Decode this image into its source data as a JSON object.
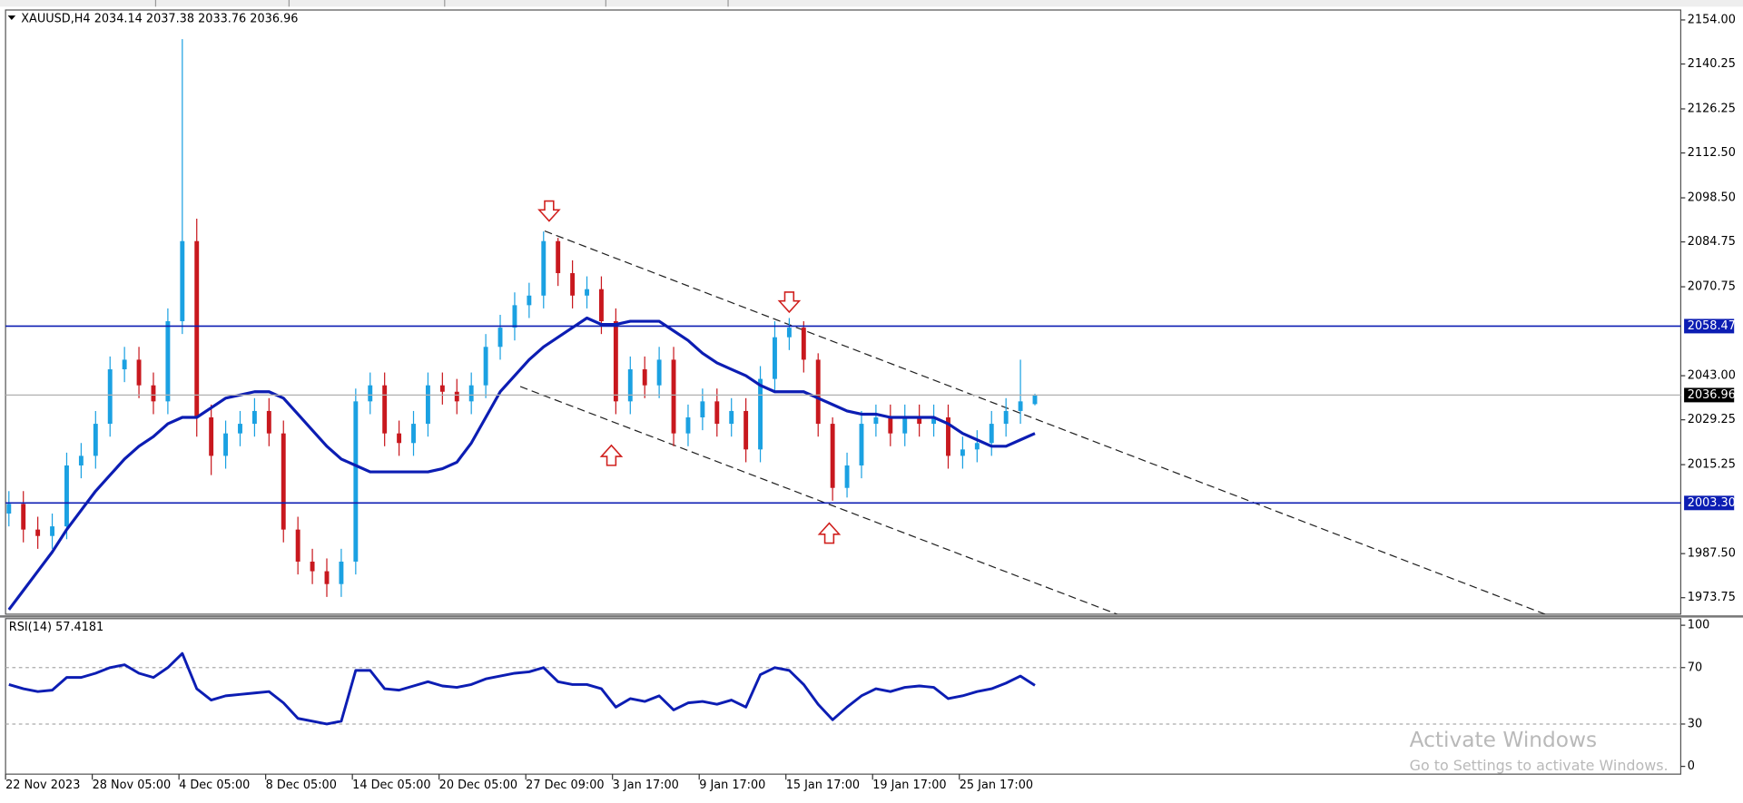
{
  "chart_data": [
    {
      "type": "candlestick",
      "title": "XAUUSD,H4  2034.14 2037.38 2033.76 2036.96",
      "bull_color": "#1ba1e2",
      "bear_color": "#c8181e",
      "open": [
        2000,
        2003,
        1995,
        1993,
        1996,
        2015,
        2018,
        2028,
        2045,
        2048,
        2040,
        2035,
        2060,
        2085,
        2030,
        2018,
        2025,
        2028,
        2032,
        2025,
        1995,
        1985,
        1982,
        1978,
        1985,
        2035,
        2040,
        2025,
        2022,
        2028,
        2040,
        2038,
        2035,
        2040,
        2052,
        2058,
        2065,
        2068,
        2085,
        2075,
        2068,
        2070,
        2060,
        2035,
        2045,
        2040,
        2048,
        2025,
        2030,
        2035,
        2028,
        2032,
        2020,
        2042,
        2055,
        2058,
        2048,
        2028,
        2008,
        2015,
        2028,
        2030,
        2025,
        2030,
        2028,
        2030,
        2018,
        2020,
        2022,
        2028,
        2032,
        2034.14
      ],
      "high": [
        2007,
        2007,
        1999,
        2000,
        2019,
        2022,
        2032,
        2049,
        2052,
        2052,
        2044,
        2064,
        2148,
        2092,
        2034,
        2029,
        2032,
        2036,
        2036,
        2029,
        1999,
        1989,
        1986,
        1989,
        2039,
        2044,
        2044,
        2029,
        2032,
        2044,
        2044,
        2042,
        2044,
        2056,
        2062,
        2069,
        2072,
        2088,
        2086,
        2079,
        2074,
        2074,
        2064,
        2049,
        2049,
        2052,
        2052,
        2034,
        2039,
        2039,
        2036,
        2036,
        2046,
        2060,
        2061,
        2060,
        2050,
        2030,
        2019,
        2032,
        2034,
        2034,
        2034,
        2034,
        2034,
        2034,
        2024,
        2026,
        2032,
        2036,
        2048,
        2037.38
      ],
      "low": [
        1996,
        1991,
        1989,
        1989,
        1992,
        2011,
        2014,
        2024,
        2041,
        2036,
        2031,
        2031,
        2056,
        2024,
        2012,
        2014,
        2021,
        2024,
        2021,
        1991,
        1981,
        1978,
        1974,
        1974,
        1981,
        2031,
        2021,
        2018,
        2018,
        2024,
        2034,
        2031,
        2031,
        2036,
        2048,
        2054,
        2061,
        2064,
        2071,
        2064,
        2064,
        2056,
        2031,
        2031,
        2036,
        2036,
        2021,
        2021,
        2026,
        2024,
        2024,
        2016,
        2016,
        2038,
        2051,
        2044,
        2024,
        2004,
        2005,
        2011,
        2024,
        2021,
        2021,
        2024,
        2024,
        2014,
        2014,
        2016,
        2018,
        2024,
        2028,
        2033.76
      ],
      "close": [
        2003,
        1995,
        1993,
        1996,
        2015,
        2018,
        2028,
        2045,
        2048,
        2040,
        2035,
        2060,
        2085,
        2030,
        2018,
        2025,
        2028,
        2032,
        2025,
        1995,
        1985,
        1982,
        1978,
        1985,
        2035,
        2040,
        2025,
        2022,
        2028,
        2040,
        2038,
        2035,
        2040,
        2052,
        2058,
        2065,
        2068,
        2085,
        2075,
        2068,
        2070,
        2060,
        2035,
        2045,
        2040,
        2048,
        2025,
        2030,
        2035,
        2028,
        2032,
        2020,
        2042,
        2055,
        2058,
        2048,
        2028,
        2008,
        2015,
        2028,
        2030,
        2025,
        2030,
        2028,
        2030,
        2018,
        2020,
        2022,
        2028,
        2032,
        2035,
        2036.96
      ],
      "ma": {
        "color": "#0c1db3",
        "values": [
          1970,
          1976,
          1982,
          1988,
          1995,
          2001,
          2007,
          2012,
          2017,
          2021,
          2024,
          2028,
          2030,
          2030,
          2033,
          2036,
          2037,
          2038,
          2038,
          2036,
          2031,
          2026,
          2021,
          2017,
          2015,
          2013,
          2013,
          2013,
          2013,
          2013,
          2014,
          2016,
          2022,
          2030,
          2038,
          2043,
          2048,
          2052,
          2055,
          2058,
          2061,
          2059,
          2059,
          2060,
          2060,
          2060,
          2057,
          2054,
          2050,
          2047,
          2045,
          2043,
          2040,
          2038,
          2038,
          2038,
          2036,
          2034,
          2032,
          2031,
          2031,
          2030,
          2030,
          2030,
          2030,
          2028,
          2025,
          2023,
          2021,
          2021,
          2023,
          2025
        ]
      },
      "ylim": [
        1968.6,
        2157.1
      ],
      "yticks": [
        {
          "value": 2154,
          "label": "2154.00"
        },
        {
          "value": 2140.25,
          "label": "2140.25"
        },
        {
          "value": 2126.25,
          "label": "2126.25"
        },
        {
          "value": 2112.5,
          "label": "2112.50"
        },
        {
          "value": 2098.5,
          "label": "2098.50"
        },
        {
          "value": 2084.75,
          "label": "2084.75"
        },
        {
          "value": 2070.75,
          "label": "2070.75"
        },
        {
          "value": 2043,
          "label": "2043.00"
        },
        {
          "value": 2029.25,
          "label": "2029.25"
        },
        {
          "value": 2015.25,
          "label": "2015.25"
        },
        {
          "value": 1987.5,
          "label": "1987.50"
        },
        {
          "value": 1973.75,
          "label": "1973.75"
        }
      ],
      "hlines": {
        "color": "#0c1db3",
        "values": [
          2058.47,
          {
            "value": 2003.3,
            "label": "2003.30"
          }
        ]
      },
      "current_price": 2036.96
    },
    {
      "type": "line",
      "title": "RSI(14) 57.4181",
      "color": "#0c1db3",
      "categories": [
        "22 Nov 2023",
        null,
        null,
        null,
        null,
        null,
        "28 Nov 05:00",
        null,
        null,
        null,
        null,
        null,
        "4 Dec 05:00",
        null,
        null,
        null,
        null,
        null,
        "8 Dec 05:00",
        null,
        null,
        null,
        null,
        null,
        "14 Dec 05:00",
        null,
        null,
        null,
        null,
        null,
        "20 Dec 05:00",
        null,
        null,
        null,
        null,
        null,
        "27 Dec 09:00",
        null,
        null,
        null,
        null,
        null,
        "3 Jan 17:00",
        null,
        null,
        null,
        null,
        null,
        "9 Jan 17:00",
        null,
        null,
        null,
        null,
        null,
        "15 Jan 17:00",
        null,
        null,
        null,
        null,
        null,
        "19 Jan 17:00",
        null,
        null,
        null,
        null,
        null,
        "25 Jan 17:00",
        null,
        null,
        null,
        null,
        null
      ],
      "values": [
        58,
        55,
        53,
        54,
        63,
        63,
        66,
        70,
        72,
        66,
        63,
        70,
        80,
        55,
        47,
        50,
        51,
        52,
        53,
        45,
        34,
        32,
        30,
        32,
        68,
        68,
        55,
        54,
        57,
        60,
        57,
        56,
        58,
        62,
        64,
        66,
        67,
        70,
        60,
        58,
        58,
        55,
        42,
        48,
        46,
        50,
        40,
        45,
        46,
        44,
        47,
        42,
        65,
        70,
        68,
        58,
        44,
        33,
        42,
        50,
        55,
        53,
        56,
        57,
        56,
        48,
        50,
        53,
        55,
        59,
        64,
        57.4181
      ],
      "ylim": [
        -5.5,
        104.7
      ],
      "yticks": [
        100,
        70,
        30,
        0
      ],
      "levels": [
        70,
        30
      ]
    }
  ],
  "overlay": {
    "watermark_title": "Activate Windows",
    "watermark_text": "Go to Settings to activate Windows."
  }
}
